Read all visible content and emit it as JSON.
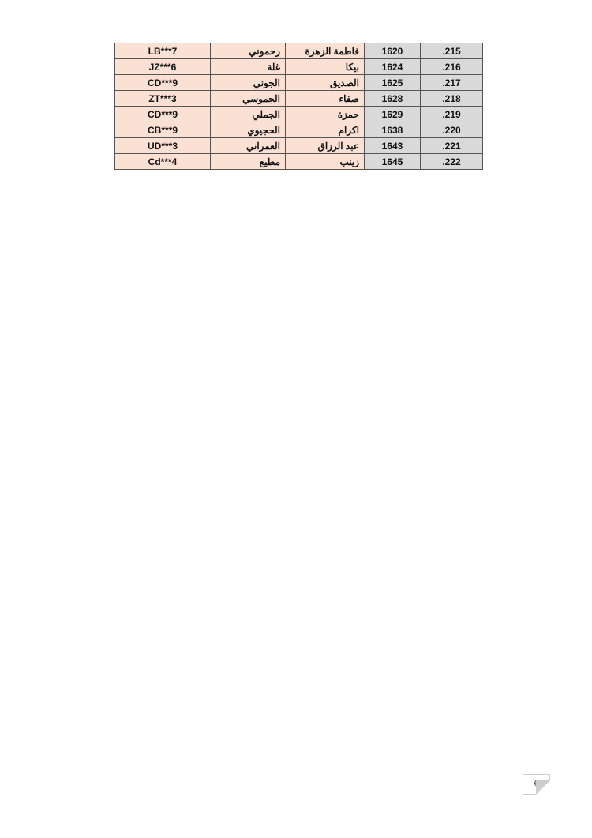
{
  "table": {
    "rows": [
      {
        "code": "LB***7",
        "surname": "رحموني",
        "first_name": "فاطمة الزهرة",
        "number": "1620",
        "index": ".215"
      },
      {
        "code": "JZ***6",
        "surname": "غلة",
        "first_name": "بيكا",
        "number": "1624",
        "index": ".216"
      },
      {
        "code": "CD***9",
        "surname": "الجوني",
        "first_name": "الصديق",
        "number": "1625",
        "index": ".217"
      },
      {
        "code": "ZT***3",
        "surname": "الجموسي",
        "first_name": "صفاء",
        "number": "1628",
        "index": ".218"
      },
      {
        "code": "CD***9",
        "surname": "الجملي",
        "first_name": "حمزة",
        "number": "1629",
        "index": ".219"
      },
      {
        "code": "CB***9",
        "surname": "الحجيوي",
        "first_name": "اكرام",
        "number": "1638",
        "index": ".220"
      },
      {
        "code": "UD***3",
        "surname": "العمراني",
        "first_name": "عبد الرزاق",
        "number": "1643",
        "index": ".221"
      },
      {
        "code": "Cd***4",
        "surname": "مطيع",
        "first_name": "زينب",
        "number": "1645",
        "index": ".222"
      }
    ]
  },
  "page_number": "6",
  "colors": {
    "name_cells": "#fbe0d4",
    "number_cells": "#d9d9d9"
  }
}
